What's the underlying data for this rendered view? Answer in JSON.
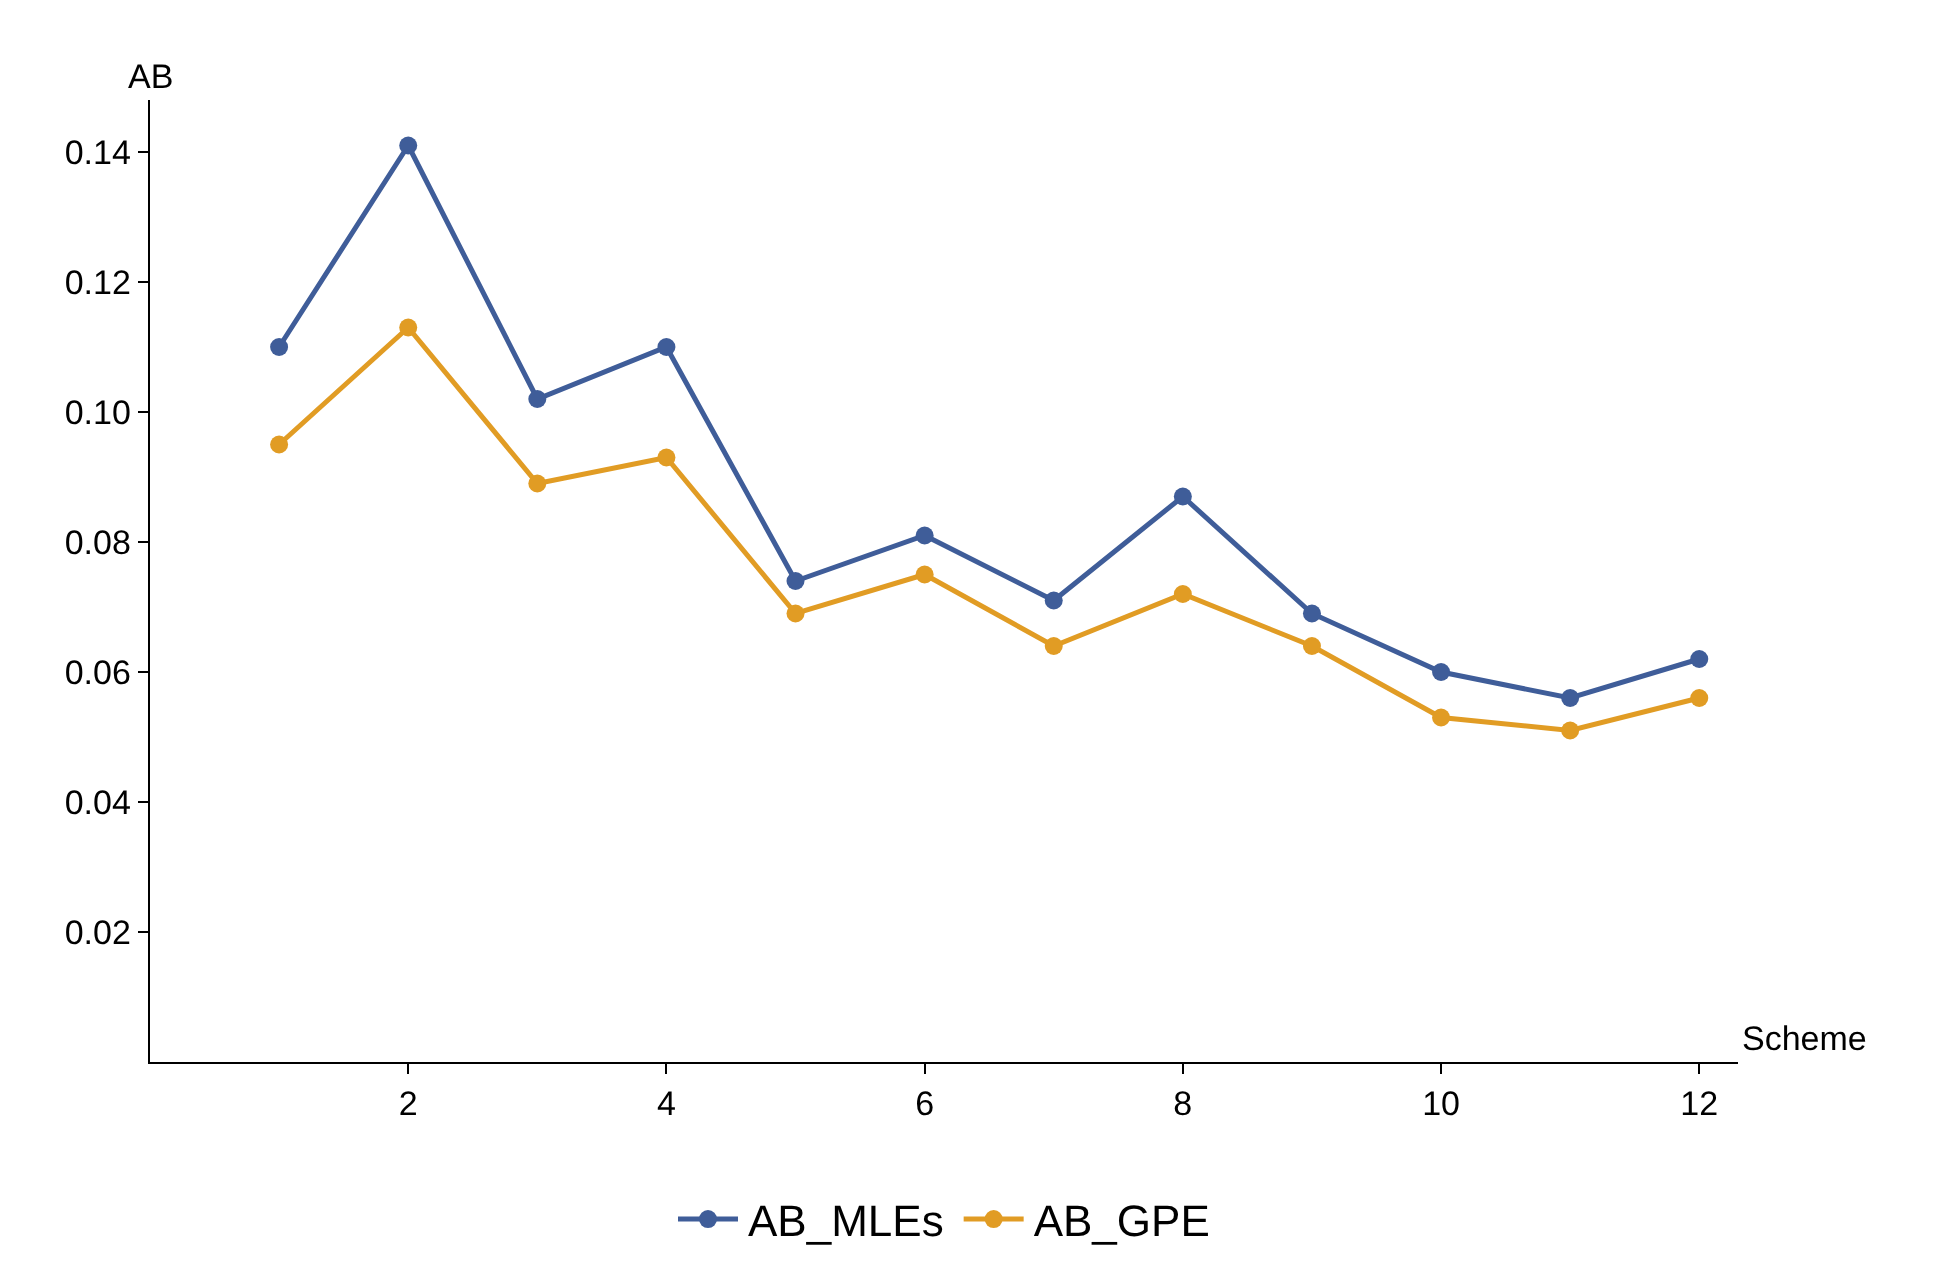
{
  "chart_data": {
    "type": "line",
    "xlabel": "Scheme",
    "ylabel": "AB",
    "x": [
      1,
      2,
      3,
      4,
      5,
      6,
      7,
      8,
      9,
      10,
      11,
      12
    ],
    "series": [
      {
        "name": "AB_MLEs",
        "color": "#3f5d99",
        "values": [
          0.11,
          0.141,
          0.102,
          0.11,
          0.074,
          0.081,
          0.071,
          0.087,
          0.069,
          0.06,
          0.056,
          0.062
        ]
      },
      {
        "name": "AB_GPE",
        "color": "#e19c24",
        "values": [
          0.095,
          0.113,
          0.089,
          0.093,
          0.069,
          0.075,
          0.064,
          0.072,
          0.064,
          0.053,
          0.051,
          0.056
        ]
      }
    ],
    "xlim": [
      0,
      12.3
    ],
    "xticks": [
      2,
      4,
      6,
      8,
      10,
      12
    ],
    "ylim": [
      0,
      0.148
    ],
    "yticks": [
      0.02,
      0.04,
      0.06,
      0.08,
      {
        "value": 0.1,
        "label": "0.10"
      },
      0.12,
      0.14
    ],
    "marker": "circle",
    "legend": "bottom"
  }
}
